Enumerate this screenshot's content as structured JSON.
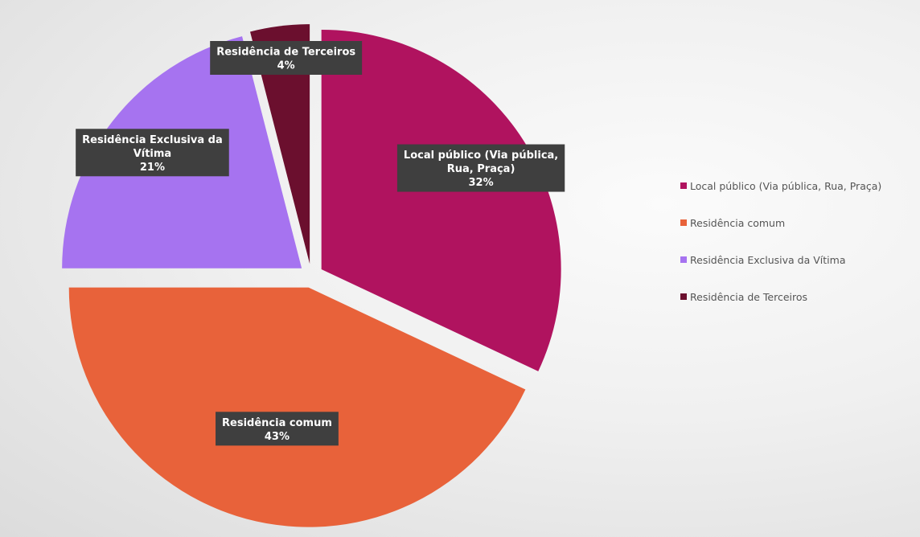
{
  "chart_data": {
    "type": "pie",
    "categories": [
      "Local público (Via pública, Rua, Praça)",
      "Residência comum",
      "Residência Exclusiva da Vítima",
      "Residência de Terceiros"
    ],
    "values": [
      32,
      43,
      21,
      4
    ],
    "unit": "%",
    "colors": [
      "#b0135f",
      "#e8623a",
      "#a673f0",
      "#6b0f2e"
    ],
    "data_labels": [
      [
        "Local público (Via pública,",
        "Rua, Praça)",
        "32%"
      ],
      [
        "Residência comum",
        "43%"
      ],
      [
        "Residência Exclusiva da",
        "Vítima",
        "21%"
      ],
      [
        "Residência de Terceiros",
        "4%"
      ]
    ],
    "legend_labels": [
      "Local público (Via pública, Rua, Praça)",
      "Residência comum",
      "Residência Exclusiva da Vítima",
      "Residência de Terceiros"
    ],
    "legend_position": "right",
    "exploded": true,
    "title": ""
  }
}
